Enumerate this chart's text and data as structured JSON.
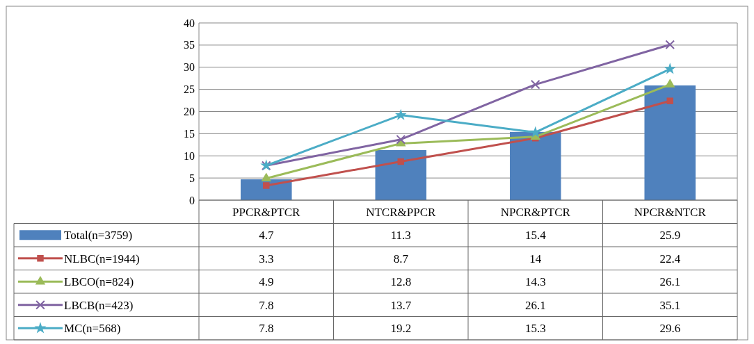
{
  "chart_data": {
    "type": "bar",
    "categories": [
      "PPCR&PTCR",
      "NTCR&PPCR",
      "NPCR&PTCR",
      "NPCR&NTCR"
    ],
    "series": [
      {
        "name": "Total(n=3759)",
        "color": "#4f81bd",
        "values": [
          4.7,
          11.3,
          15.4,
          25.9
        ]
      },
      {
        "name": "NLBC(n=1944)",
        "type": "line",
        "color": "#c0504d",
        "marker": "square",
        "values": [
          3.3,
          8.7,
          14,
          22.4
        ]
      },
      {
        "name": "LBCO(n=824)",
        "type": "line",
        "color": "#9bbb59",
        "marker": "triangle",
        "values": [
          4.9,
          12.8,
          14.3,
          26.1
        ]
      },
      {
        "name": "LBCB(n=423)",
        "type": "line",
        "color": "#8064a2",
        "marker": "cross",
        "values": [
          7.8,
          13.7,
          26.1,
          35.1
        ]
      },
      {
        "name": "MC(n=568)",
        "type": "line",
        "color": "#4bacc6",
        "marker": "star",
        "values": [
          7.8,
          19.2,
          15.3,
          29.6
        ]
      }
    ],
    "ylim": [
      0,
      40
    ],
    "yticks": [
      0,
      5,
      10,
      15,
      20,
      25,
      30,
      35,
      40
    ],
    "grid": "y",
    "legend": "bottom",
    "data_labels": true
  }
}
